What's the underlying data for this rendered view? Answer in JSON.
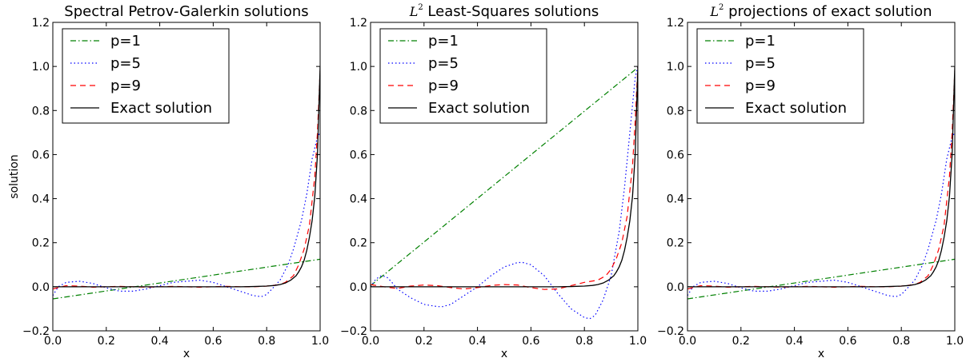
{
  "chart_data": [
    {
      "type": "line",
      "title": "Spectral Petrov-Galerkin solutions",
      "xlabel": "x",
      "ylabel": "solution",
      "xlim": [
        0.0,
        1.0
      ],
      "ylim": [
        -0.2,
        1.2
      ],
      "xticks": [
        "0.0",
        "0.2",
        "0.4",
        "0.6",
        "0.8",
        "1.0"
      ],
      "yticks": [
        "−0.2",
        "0.0",
        "0.2",
        "0.4",
        "0.6",
        "0.8",
        "1.0",
        "1.2"
      ],
      "legend_position": "top-left",
      "series": [
        {
          "name": "p=1",
          "color": "#008000",
          "style": "dashdot",
          "x": [
            0.0,
            1.0
          ],
          "y": [
            -0.055,
            0.125
          ]
        },
        {
          "name": "p=5",
          "color": "#0000ff",
          "style": "dotted",
          "x": [
            0.0,
            0.02,
            0.05,
            0.1,
            0.15,
            0.2,
            0.25,
            0.3,
            0.35,
            0.4,
            0.45,
            0.5,
            0.55,
            0.6,
            0.65,
            0.7,
            0.75,
            0.78,
            0.8,
            0.82,
            0.85,
            0.88,
            0.9,
            0.93,
            0.95,
            0.97,
            0.99,
            1.0
          ],
          "y": [
            -0.04,
            0.0,
            0.02,
            0.025,
            0.015,
            -0.005,
            -0.02,
            -0.02,
            -0.01,
            0.005,
            0.02,
            0.025,
            0.03,
            0.02,
            0.0,
            -0.02,
            -0.04,
            -0.045,
            -0.035,
            -0.01,
            0.03,
            0.1,
            0.17,
            0.3,
            0.42,
            0.58,
            0.68,
            0.7
          ]
        },
        {
          "name": "p=9",
          "color": "#ff0000",
          "style": "dashed",
          "x": [
            0.0,
            0.05,
            0.1,
            0.15,
            0.2,
            0.25,
            0.3,
            0.35,
            0.4,
            0.45,
            0.5,
            0.55,
            0.6,
            0.65,
            0.7,
            0.75,
            0.8,
            0.85,
            0.87,
            0.9,
            0.92,
            0.94,
            0.96,
            0.98,
            0.99,
            1.0
          ],
          "y": [
            -0.01,
            0.005,
            0.003,
            -0.002,
            0.0,
            0.002,
            0.0,
            -0.002,
            0.0,
            0.002,
            0.0,
            -0.002,
            0.0,
            0.002,
            0.0,
            0.0,
            0.003,
            0.01,
            0.02,
            0.05,
            0.1,
            0.17,
            0.28,
            0.5,
            0.7,
            0.98
          ]
        },
        {
          "name": "Exact solution",
          "color": "#000000",
          "style": "solid",
          "x": [
            0.0,
            0.1,
            0.2,
            0.3,
            0.4,
            0.5,
            0.6,
            0.7,
            0.75,
            0.8,
            0.83,
            0.85,
            0.87,
            0.89,
            0.9,
            0.91,
            0.92,
            0.93,
            0.94,
            0.95,
            0.96,
            0.97,
            0.98,
            0.99,
            1.0
          ],
          "y": [
            0.0,
            0.0,
            0.0,
            0.0,
            0.0,
            0.0,
            0.0,
            0.0,
            0.001,
            0.003,
            0.006,
            0.01,
            0.017,
            0.03,
            0.04,
            0.05,
            0.068,
            0.09,
            0.12,
            0.165,
            0.225,
            0.3,
            0.41,
            0.6,
            1.0
          ]
        }
      ]
    },
    {
      "type": "line",
      "title": "Least-Squares solutions",
      "title_math": "L",
      "title_sup": "2",
      "xlabel": "x",
      "ylabel": "",
      "xlim": [
        0.0,
        1.0
      ],
      "ylim": [
        -0.2,
        1.2
      ],
      "xticks": [
        "0.0",
        "0.2",
        "0.4",
        "0.6",
        "0.8",
        "1.0"
      ],
      "yticks": [
        "−0.2",
        "0.0",
        "0.2",
        "0.4",
        "0.6",
        "0.8",
        "1.0",
        "1.2"
      ],
      "legend_position": "top-left",
      "series": [
        {
          "name": "p=1",
          "color": "#008000",
          "style": "dashdot",
          "x": [
            0.0,
            1.0
          ],
          "y": [
            0.005,
            0.995
          ]
        },
        {
          "name": "p=5",
          "color": "#0000ff",
          "style": "dotted",
          "x": [
            0.0,
            0.02,
            0.04,
            0.06,
            0.08,
            0.1,
            0.15,
            0.2,
            0.25,
            0.27,
            0.3,
            0.35,
            0.4,
            0.45,
            0.5,
            0.55,
            0.57,
            0.6,
            0.65,
            0.7,
            0.75,
            0.8,
            0.82,
            0.84,
            0.87,
            0.9,
            0.93,
            0.95,
            0.97,
            0.99,
            1.0
          ],
          "y": [
            0.0,
            0.035,
            0.05,
            0.045,
            0.02,
            -0.01,
            -0.05,
            -0.08,
            -0.09,
            -0.09,
            -0.08,
            -0.04,
            0.0,
            0.05,
            0.09,
            0.11,
            0.11,
            0.1,
            0.05,
            -0.03,
            -0.1,
            -0.14,
            -0.145,
            -0.13,
            -0.06,
            0.05,
            0.25,
            0.45,
            0.7,
            0.95,
            1.0
          ]
        },
        {
          "name": "p=9",
          "color": "#ff0000",
          "style": "dashed",
          "x": [
            0.0,
            0.05,
            0.1,
            0.15,
            0.2,
            0.25,
            0.3,
            0.35,
            0.4,
            0.45,
            0.5,
            0.55,
            0.6,
            0.65,
            0.7,
            0.75,
            0.8,
            0.85,
            0.88,
            0.9,
            0.92,
            0.94,
            0.96,
            0.98,
            0.99,
            1.0
          ],
          "y": [
            0.01,
            0.0,
            -0.008,
            0.003,
            0.008,
            0.005,
            -0.004,
            -0.01,
            -0.004,
            0.006,
            0.01,
            0.008,
            -0.004,
            -0.012,
            -0.01,
            0.005,
            0.02,
            0.03,
            0.05,
            0.08,
            0.13,
            0.2,
            0.32,
            0.55,
            0.75,
            1.0
          ]
        },
        {
          "name": "Exact solution",
          "color": "#000000",
          "style": "solid",
          "x": [
            0.0,
            0.1,
            0.2,
            0.3,
            0.4,
            0.5,
            0.6,
            0.7,
            0.75,
            0.8,
            0.83,
            0.85,
            0.87,
            0.89,
            0.9,
            0.91,
            0.92,
            0.93,
            0.94,
            0.95,
            0.96,
            0.97,
            0.98,
            0.99,
            1.0
          ],
          "y": [
            0.0,
            0.0,
            0.0,
            0.0,
            0.0,
            0.0,
            0.0,
            0.0,
            0.001,
            0.003,
            0.006,
            0.01,
            0.017,
            0.03,
            0.04,
            0.05,
            0.068,
            0.09,
            0.12,
            0.165,
            0.225,
            0.3,
            0.41,
            0.6,
            1.0
          ]
        }
      ]
    },
    {
      "type": "line",
      "title": "projections of exact solution",
      "title_math": "L",
      "title_sup": "2",
      "xlabel": "x",
      "ylabel": "",
      "xlim": [
        0.0,
        1.0
      ],
      "ylim": [
        -0.2,
        1.2
      ],
      "xticks": [
        "0.0",
        "0.2",
        "0.4",
        "0.6",
        "0.8",
        "1.0"
      ],
      "yticks": [
        "−0.2",
        "0.0",
        "0.2",
        "0.4",
        "0.6",
        "0.8",
        "1.0",
        "1.2"
      ],
      "legend_position": "top-left",
      "series": [
        {
          "name": "p=1",
          "color": "#008000",
          "style": "dashdot",
          "x": [
            0.0,
            1.0
          ],
          "y": [
            -0.055,
            0.125
          ]
        },
        {
          "name": "p=5",
          "color": "#0000ff",
          "style": "dotted",
          "x": [
            0.0,
            0.02,
            0.05,
            0.1,
            0.15,
            0.2,
            0.25,
            0.3,
            0.35,
            0.4,
            0.45,
            0.5,
            0.55,
            0.6,
            0.65,
            0.7,
            0.75,
            0.78,
            0.8,
            0.82,
            0.85,
            0.88,
            0.9,
            0.93,
            0.95,
            0.97,
            0.99,
            1.0
          ],
          "y": [
            -0.04,
            0.0,
            0.02,
            0.025,
            0.015,
            -0.005,
            -0.02,
            -0.02,
            -0.01,
            0.005,
            0.02,
            0.025,
            0.03,
            0.02,
            0.0,
            -0.02,
            -0.04,
            -0.045,
            -0.035,
            -0.01,
            0.03,
            0.1,
            0.17,
            0.3,
            0.42,
            0.58,
            0.68,
            0.7
          ]
        },
        {
          "name": "p=9",
          "color": "#ff0000",
          "style": "dashed",
          "x": [
            0.0,
            0.05,
            0.1,
            0.15,
            0.2,
            0.25,
            0.3,
            0.35,
            0.4,
            0.45,
            0.5,
            0.55,
            0.6,
            0.65,
            0.7,
            0.75,
            0.8,
            0.85,
            0.87,
            0.9,
            0.92,
            0.94,
            0.96,
            0.98,
            0.99,
            1.0
          ],
          "y": [
            -0.01,
            0.005,
            0.003,
            -0.002,
            0.0,
            0.002,
            0.0,
            -0.002,
            0.0,
            0.002,
            0.0,
            -0.002,
            0.0,
            0.002,
            0.0,
            0.0,
            0.003,
            0.01,
            0.02,
            0.05,
            0.1,
            0.17,
            0.28,
            0.5,
            0.7,
            0.98
          ]
        },
        {
          "name": "Exact solution",
          "color": "#000000",
          "style": "solid",
          "x": [
            0.0,
            0.1,
            0.2,
            0.3,
            0.4,
            0.5,
            0.6,
            0.7,
            0.75,
            0.8,
            0.83,
            0.85,
            0.87,
            0.89,
            0.9,
            0.91,
            0.92,
            0.93,
            0.94,
            0.95,
            0.96,
            0.97,
            0.98,
            0.99,
            1.0
          ],
          "y": [
            0.0,
            0.0,
            0.0,
            0.0,
            0.0,
            0.0,
            0.0,
            0.0,
            0.001,
            0.003,
            0.006,
            0.01,
            0.017,
            0.03,
            0.04,
            0.05,
            0.068,
            0.09,
            0.12,
            0.165,
            0.225,
            0.3,
            0.41,
            0.6,
            1.0
          ]
        }
      ]
    }
  ]
}
